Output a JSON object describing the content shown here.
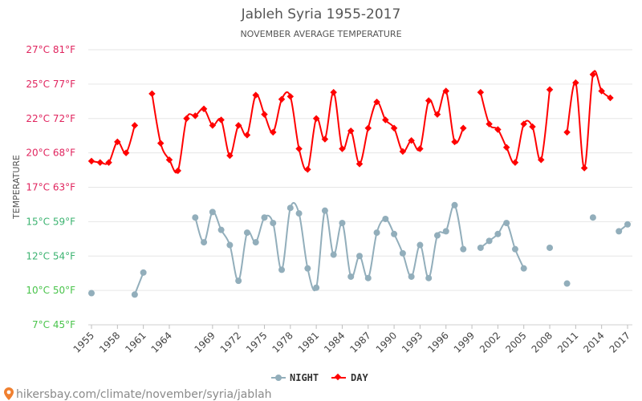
{
  "chart_data": {
    "type": "line",
    "title": "Jableh Syria 1955-2017",
    "subtitle": "NOVEMBER AVERAGE TEMPERATURE",
    "ylabel": "TEMPERATURE",
    "x_tick_labels": [
      "1955",
      "1958",
      "1961",
      "1964",
      "1969",
      "1972",
      "1975",
      "1978",
      "1981",
      "1984",
      "1987",
      "1990",
      "1993",
      "1996",
      "1999",
      "2002",
      "2005",
      "2008",
      "2011",
      "2014",
      "2017"
    ],
    "x_range": [
      1955,
      2017
    ],
    "y_ticks": [
      {
        "value": 7.5,
        "label": "7°C 45°F"
      },
      {
        "value": 10,
        "label": "10°C 50°F"
      },
      {
        "value": 12.5,
        "label": "12°C 54°F"
      },
      {
        "value": 15,
        "label": "15°C 59°F"
      },
      {
        "value": 17.5,
        "label": "17°C 63°F"
      },
      {
        "value": 20,
        "label": "20°C 68°F"
      },
      {
        "value": 22.5,
        "label": "22°C 72°F"
      },
      {
        "value": 25,
        "label": "25°C 77°F"
      },
      {
        "value": 27.5,
        "label": "27°C 81°F"
      }
    ],
    "ylim": [
      7.5,
      27.5
    ],
    "grid": true,
    "legend_position": "bottom-center",
    "x": [
      1955,
      1956,
      1957,
      1958,
      1959,
      1960,
      1961,
      1962,
      1963,
      1964,
      1965,
      1966,
      1967,
      1968,
      1969,
      1970,
      1971,
      1972,
      1973,
      1974,
      1975,
      1976,
      1977,
      1978,
      1979,
      1980,
      1981,
      1982,
      1983,
      1984,
      1985,
      1986,
      1987,
      1988,
      1989,
      1990,
      1991,
      1992,
      1993,
      1994,
      1995,
      1996,
      1997,
      1998,
      1999,
      2000,
      2001,
      2002,
      2003,
      2004,
      2005,
      2006,
      2007,
      2008,
      2009,
      2010,
      2011,
      2012,
      2013,
      2014,
      2015,
      2016,
      2017
    ],
    "series": [
      {
        "name": "NIGHT",
        "color": "#92aebb",
        "values": [
          9.8,
          null,
          null,
          null,
          null,
          9.7,
          11.3,
          null,
          null,
          null,
          null,
          null,
          15.3,
          13.5,
          15.7,
          14.4,
          13.3,
          10.7,
          14.2,
          13.5,
          15.3,
          14.9,
          11.5,
          16.0,
          15.6,
          11.6,
          10.2,
          15.8,
          12.6,
          14.9,
          11.0,
          12.5,
          10.9,
          14.2,
          15.2,
          14.1,
          12.7,
          11.0,
          13.3,
          10.9,
          14.0,
          14.3,
          16.2,
          13.0,
          null,
          13.1,
          13.6,
          14.1,
          14.9,
          13.0,
          11.6,
          null,
          null,
          13.1,
          null,
          10.5,
          null,
          null,
          15.3,
          null,
          null,
          14.3,
          14.8
        ]
      },
      {
        "name": "DAY",
        "color": "#ff0000",
        "values": [
          19.4,
          19.3,
          19.3,
          20.8,
          20.0,
          22.0,
          null,
          24.3,
          20.7,
          19.5,
          18.7,
          22.5,
          22.7,
          23.2,
          22.0,
          22.4,
          19.8,
          22.0,
          21.3,
          24.2,
          22.8,
          21.5,
          23.9,
          24.1,
          20.3,
          18.8,
          22.5,
          21.0,
          24.4,
          20.3,
          21.6,
          19.2,
          21.8,
          23.7,
          22.4,
          21.8,
          20.1,
          20.9,
          20.3,
          23.8,
          22.8,
          24.5,
          20.8,
          21.8,
          null,
          24.4,
          22.1,
          21.7,
          20.4,
          19.3,
          22.1,
          21.9,
          19.5,
          24.6,
          null,
          21.5,
          25.1,
          18.9,
          25.7,
          24.5,
          24.0,
          null,
          null
        ]
      }
    ]
  },
  "legend": {
    "items": [
      {
        "label": "NIGHT",
        "color": "#92aebb"
      },
      {
        "label": "DAY",
        "color": "#ff0000"
      }
    ]
  },
  "footer": {
    "url": "hikersbay.com/climate/november/syria/jablah",
    "pin_color": "#f08030"
  },
  "colors": {
    "grid": "#e6e6e6",
    "tick_warm": "#e0245e",
    "tick_mid": "#3cb371",
    "tick_cool": "#49c44b"
  }
}
